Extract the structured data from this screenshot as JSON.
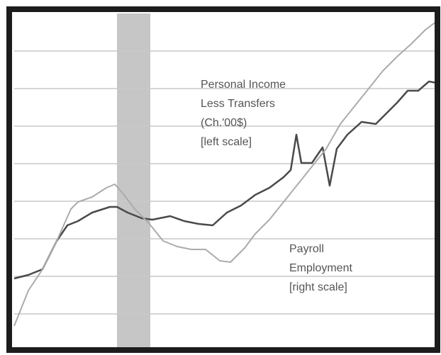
{
  "chart_data": {
    "type": "line",
    "annotations": [
      {
        "lines": [
          "Personal Income",
          "Less Transfers",
          "(Ch.'00$)",
          "[left scale]"
        ],
        "x": 263,
        "y": 376
      },
      {
        "lines": [
          "Payroll",
          "Employment",
          "[right scale]"
        ],
        "x": 388,
        "y": 144
      }
    ],
    "shade": [
      145,
      192
    ],
    "xlim": [
      0,
      596
    ],
    "ylim": [
      0,
      477
    ],
    "yticks": [
      53,
      106,
      159,
      212,
      265,
      318,
      371,
      424
    ],
    "grid": true,
    "series": [
      {
        "color": "#4a4a4a",
        "x": [
          0,
          20,
          40,
          60,
          75,
          90,
          110,
          135,
          145,
          160,
          180,
          195,
          220,
          240,
          260,
          280,
          300,
          320,
          340,
          360,
          380,
          390,
          398,
          405,
          420,
          435,
          445,
          455,
          470,
          490,
          510,
          525,
          540,
          555,
          570,
          585,
          596
        ],
        "values": [
          103,
          108,
          116,
          156,
          178,
          184,
          196,
          204,
          204,
          196,
          188,
          186,
          191,
          184,
          180,
          178,
          196,
          206,
          221,
          231,
          246,
          256,
          306,
          266,
          266,
          288,
          234,
          286,
          306,
          324,
          321,
          336,
          351,
          368,
          368,
          381,
          379
        ]
      },
      {
        "color": "#ababab",
        "x": [
          0,
          20,
          40,
          60,
          80,
          90,
          110,
          130,
          142,
          155,
          170,
          190,
          210,
          230,
          250,
          270,
          290,
          305,
          325,
          340,
          360,
          380,
          400,
          420,
          440,
          460,
          480,
          500,
          520,
          540,
          560,
          580,
          596
        ],
        "values": [
          36,
          86,
          116,
          156,
          201,
          211,
          218,
          231,
          236,
          221,
          201,
          181,
          156,
          148,
          144,
          144,
          128,
          126,
          146,
          166,
          186,
          211,
          236,
          261,
          286,
          321,
          346,
          371,
          396,
          416,
          434,
          454,
          466
        ]
      }
    ]
  }
}
